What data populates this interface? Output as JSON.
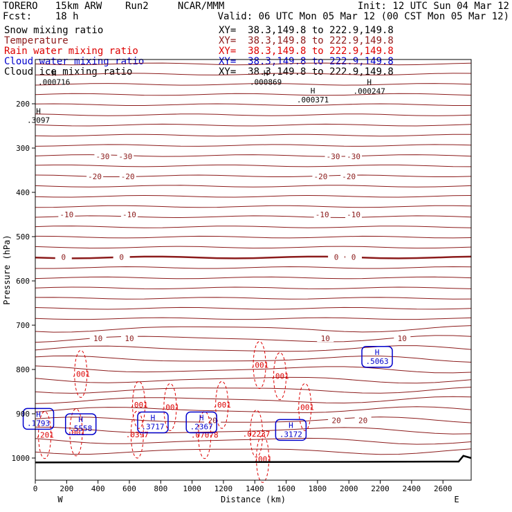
{
  "header": {
    "model": "TORERO   15km ARW    Run2     NCAR/MMM",
    "forecast": "Fcst:    18 h",
    "init": "Init: 12 UTC Sun 04 Mar 12",
    "valid": "Valid: 06 UTC Mon 05 Mar 12 (00 CST Mon 05 Mar 12)"
  },
  "legend": [
    {
      "name": "Snow mixing ratio",
      "xy": "XY=  38.3,149.8 to 222.9,149.8",
      "color": "#000000"
    },
    {
      "name": "Temperature",
      "xy": "XY=  38.3,149.8 to 222.9,149.8",
      "color": "#8b1a1a"
    },
    {
      "name": "Rain water mixing ratio",
      "xy": "XY=  38.3,149.8 to 222.9,149.8",
      "color": "#dd0000"
    },
    {
      "name": "Cloud water mixing ratio",
      "xy": "XY=  38.3,149.8 to 222.9,149.8",
      "color": "#0000cc"
    },
    {
      "name": "Cloud ice mixing ratio",
      "xy": "XY=  38.3,149.8 to 222.9,149.8",
      "color": "#000000"
    }
  ],
  "chart_data": {
    "type": "contour-cross-section",
    "ylabel": "Pressure (hPa)",
    "xlabel": "Distance (km)",
    "x_end_labels": {
      "left": "W",
      "right": "E"
    },
    "xlim": [
      0,
      2780
    ],
    "ylim": [
      1050,
      100
    ],
    "x_ticks": [
      0,
      200,
      400,
      600,
      800,
      1000,
      1200,
      1400,
      1600,
      1800,
      2000,
      2200,
      2400,
      2600
    ],
    "y_ticks": [
      200,
      300,
      400,
      500,
      600,
      700,
      800,
      900,
      1000
    ],
    "temperature_isotherm_labels": [
      {
        "label": "-30",
        "x": [
          430,
          575,
          1900,
          2030
        ],
        "p": 319
      },
      {
        "label": "-20",
        "x": [
          380,
          590,
          1820,
          2000
        ],
        "p": 364
      },
      {
        "label": "-10",
        "x": [
          200,
          600,
          1830,
          2030
        ],
        "p": 450
      },
      {
        "label": "0",
        "x": [
          180,
          550,
          1920,
          2030
        ],
        "p": 546
      },
      {
        "label": "10",
        "x": [
          400,
          600,
          1850,
          2340
        ],
        "p": 730
      },
      {
        "label": "20",
        "x": [
          1130,
          1920,
          2090
        ],
        "p": 915
      }
    ],
    "cloud_water_maxima": [
      {
        "x": 20,
        "p": 910,
        "label": ".1793"
      },
      {
        "x": 290,
        "p": 922,
        "label": ".5558"
      },
      {
        "x": 750,
        "p": 918,
        "label": ".3717"
      },
      {
        "x": 1060,
        "p": 918,
        "label": ".2367"
      },
      {
        "x": 1630,
        "p": 935,
        "label": ".3172"
      },
      {
        "x": 2180,
        "p": 770,
        "label": ".5063"
      }
    ],
    "rain_water_labels": [
      {
        "x": 290,
        "p": 810,
        "label": ".001"
      },
      {
        "x": 660,
        "p": 880,
        "label": ".001"
      },
      {
        "x": 860,
        "p": 885,
        "label": ".001"
      },
      {
        "x": 1190,
        "p": 880,
        "label": ".001"
      },
      {
        "x": 1430,
        "p": 790,
        "label": ".001"
      },
      {
        "x": 1560,
        "p": 815,
        "label": ".001"
      },
      {
        "x": 1720,
        "p": 885,
        "label": ".001"
      },
      {
        "x": 1450,
        "p": 1002,
        "label": ".001"
      },
      {
        "x": 650,
        "p": 947,
        "label": ".0397"
      },
      {
        "x": 1080,
        "p": 948,
        "label": ".07078"
      },
      {
        "x": 1410,
        "p": 945,
        "label": ".02237"
      },
      {
        "x": 60,
        "p": 948,
        "label": ".201"
      },
      {
        "x": 260,
        "p": 942,
        "label": ".001"
      }
    ],
    "snow_ice_maxima": [
      {
        "x": 120,
        "p": 140,
        "label": ".000716"
      },
      {
        "x": 1470,
        "p": 140,
        "label": ".000869"
      },
      {
        "x": 1770,
        "p": 180,
        "label": ".000371"
      },
      {
        "x": 2130,
        "p": 160,
        "label": ".000247"
      },
      {
        "x": 20,
        "p": 226,
        "label": ".3097"
      }
    ]
  }
}
